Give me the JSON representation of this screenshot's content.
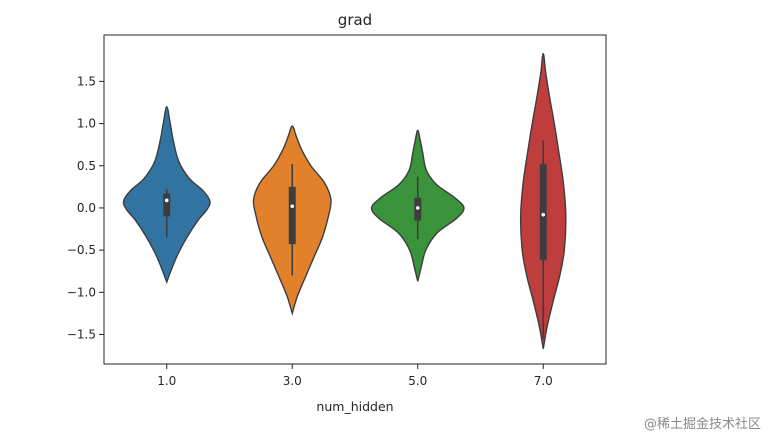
{
  "chart_data": {
    "type": "violin",
    "title": "grad",
    "xlabel": "num_hidden",
    "ylabel": "",
    "categories": [
      "1.0",
      "3.0",
      "5.0",
      "7.0"
    ],
    "ylim": [
      -1.85,
      2.05
    ],
    "yticks": [
      -1.5,
      -1.0,
      -0.5,
      0.0,
      0.5,
      1.0,
      1.5
    ],
    "ytick_labels": [
      "−1.5",
      "−1.0",
      "−0.5",
      "0.0",
      "0.5",
      "1.0",
      "1.5"
    ],
    "grid": false,
    "violins": [
      {
        "category": "1.0",
        "color": "#3274a1",
        "min": -0.88,
        "max": 1.2,
        "q1": -0.1,
        "median": 0.09,
        "q3": 0.17,
        "whisker_low": -0.35,
        "whisker_high": 0.22,
        "profile": [
          {
            "y": -0.88,
            "w": 0.0
          },
          {
            "y": -0.75,
            "w": 0.08
          },
          {
            "y": -0.55,
            "w": 0.22
          },
          {
            "y": -0.35,
            "w": 0.4
          },
          {
            "y": -0.15,
            "w": 0.62
          },
          {
            "y": -0.02,
            "w": 0.8
          },
          {
            "y": 0.08,
            "w": 0.86
          },
          {
            "y": 0.2,
            "w": 0.73
          },
          {
            "y": 0.35,
            "w": 0.45
          },
          {
            "y": 0.55,
            "w": 0.24
          },
          {
            "y": 0.8,
            "w": 0.13
          },
          {
            "y": 1.0,
            "w": 0.07
          },
          {
            "y": 1.2,
            "w": 0.0
          }
        ]
      },
      {
        "category": "3.0",
        "color": "#e1812c",
        "min": -1.25,
        "max": 0.97,
        "q1": -0.43,
        "median": 0.02,
        "q3": 0.25,
        "whisker_low": -0.8,
        "whisker_high": 0.52,
        "profile": [
          {
            "y": -1.25,
            "w": 0.0
          },
          {
            "y": -1.05,
            "w": 0.1
          },
          {
            "y": -0.85,
            "w": 0.24
          },
          {
            "y": -0.6,
            "w": 0.42
          },
          {
            "y": -0.35,
            "w": 0.6
          },
          {
            "y": -0.1,
            "w": 0.72
          },
          {
            "y": 0.1,
            "w": 0.77
          },
          {
            "y": 0.3,
            "w": 0.64
          },
          {
            "y": 0.5,
            "w": 0.37
          },
          {
            "y": 0.7,
            "w": 0.18
          },
          {
            "y": 0.85,
            "w": 0.08
          },
          {
            "y": 0.97,
            "w": 0.0
          }
        ]
      },
      {
        "category": "5.0",
        "color": "#3a923a",
        "min": -0.87,
        "max": 0.92,
        "q1": -0.15,
        "median": 0.0,
        "q3": 0.12,
        "whisker_low": -0.37,
        "whisker_high": 0.37,
        "profile": [
          {
            "y": -0.87,
            "w": 0.0
          },
          {
            "y": -0.7,
            "w": 0.07
          },
          {
            "y": -0.5,
            "w": 0.16
          },
          {
            "y": -0.3,
            "w": 0.38
          },
          {
            "y": -0.12,
            "w": 0.78
          },
          {
            "y": 0.0,
            "w": 0.92
          },
          {
            "y": 0.12,
            "w": 0.74
          },
          {
            "y": 0.28,
            "w": 0.37
          },
          {
            "y": 0.45,
            "w": 0.17
          },
          {
            "y": 0.65,
            "w": 0.1
          },
          {
            "y": 0.8,
            "w": 0.05
          },
          {
            "y": 0.92,
            "w": 0.0
          }
        ]
      },
      {
        "category": "7.0",
        "color": "#c03d3e",
        "min": -1.67,
        "max": 1.83,
        "q1": -0.62,
        "median": -0.08,
        "q3": 0.52,
        "whisker_low": -1.55,
        "whisker_high": 0.8,
        "profile": [
          {
            "y": -1.67,
            "w": 0.0
          },
          {
            "y": -1.4,
            "w": 0.08
          },
          {
            "y": -1.1,
            "w": 0.2
          },
          {
            "y": -0.8,
            "w": 0.33
          },
          {
            "y": -0.5,
            "w": 0.42
          },
          {
            "y": -0.1,
            "w": 0.45
          },
          {
            "y": 0.3,
            "w": 0.4
          },
          {
            "y": 0.7,
            "w": 0.3
          },
          {
            "y": 1.0,
            "w": 0.22
          },
          {
            "y": 1.3,
            "w": 0.13
          },
          {
            "y": 1.6,
            "w": 0.05
          },
          {
            "y": 1.83,
            "w": 0.0
          }
        ]
      }
    ]
  },
  "watermark": "@稀土掘金技术社区"
}
